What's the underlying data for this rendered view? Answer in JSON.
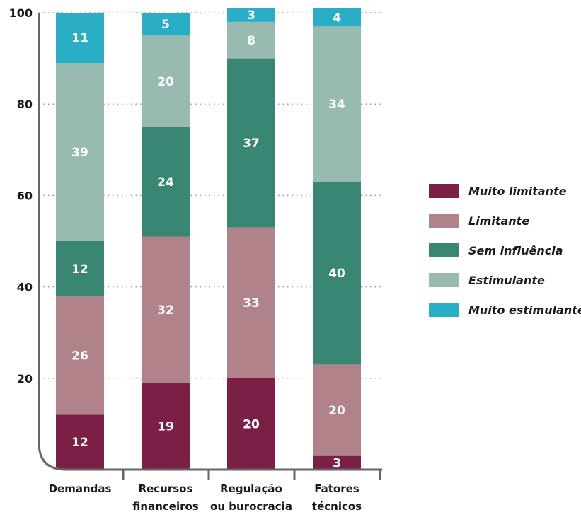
{
  "chart_data": {
    "type": "bar",
    "stacked": true,
    "categories": [
      [
        "Demandas"
      ],
      [
        "Recursos",
        "financeiros"
      ],
      [
        "Regulação",
        "ou burocracia"
      ],
      [
        "Fatores",
        "técnicos"
      ]
    ],
    "series": [
      {
        "name": "Muito limitante",
        "color": "#7b1f47",
        "values": [
          12,
          19,
          20,
          3
        ]
      },
      {
        "name": "Limitante",
        "color": "#b0828a",
        "values": [
          26,
          32,
          33,
          20
        ]
      },
      {
        "name": "Sem influência",
        "color": "#3a8675",
        "values": [
          12,
          24,
          37,
          40
        ]
      },
      {
        "name": "Estimulante",
        "color": "#98bab0",
        "values": [
          39,
          20,
          8,
          34
        ]
      },
      {
        "name": "Muito estimulante",
        "color": "#29aec6",
        "values": [
          11,
          5,
          3,
          4
        ]
      }
    ],
    "ylim": [
      0,
      100
    ],
    "yticks": [
      100,
      80,
      60,
      40,
      20
    ],
    "grid": true,
    "legend_position": "right"
  }
}
